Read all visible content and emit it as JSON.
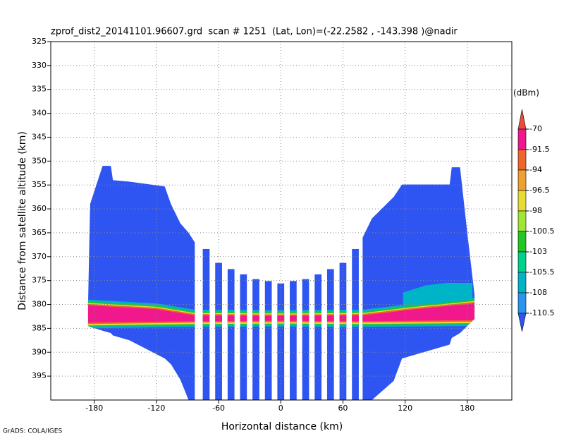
{
  "chart_data": {
    "type": "profile",
    "title": "zprof_dist2_20141101.96607.grd  scan # 1251  (Lat, Lon)=(-22.2582 , -143.398 )@nadir",
    "xlabel": "Horizontal distance (km)",
    "ylabel": "Distance from satellite altitude (km)",
    "credit": "GrADS: COLA/IGES",
    "xlim": [
      -222,
      223
    ],
    "ylim": [
      325,
      400
    ],
    "xticks": [
      -180,
      -120,
      -60,
      0,
      60,
      120,
      180
    ],
    "yticks": [
      325,
      330,
      335,
      340,
      345,
      350,
      355,
      360,
      365,
      370,
      375,
      380,
      385,
      390,
      395
    ],
    "grid": true,
    "colorbar": {
      "unit": "(dBm)",
      "levels": [
        -70,
        -91.5,
        -94,
        -96.5,
        -98,
        -100.5,
        -103,
        -105.5,
        -108,
        -110.5
      ],
      "colors": [
        "#ec4a3c",
        "#f0188c",
        "#f0642d",
        "#f0a030",
        "#e6dc32",
        "#a0e632",
        "#22c822",
        "#00d28c",
        "#00b4c8",
        "#2896f0",
        "#2e55f2"
      ]
    },
    "swaths": [
      {
        "value": -112,
        "x": [
          -186,
          -184,
          -172,
          -164,
          -162,
          -146,
          -112,
          -106,
          -97,
          -89,
          -83
        ],
        "top": [
          380,
          359,
          351,
          351,
          354,
          354.3,
          355.3,
          359,
          363,
          365,
          367
        ],
        "bottom": [
          384.5,
          384.7,
          385.5,
          386,
          386.5,
          387.5,
          391.3,
          392.5,
          395.7,
          400,
          400
        ]
      },
      {
        "value": -112,
        "x": [
          79,
          88,
          109,
          117,
          163,
          165,
          173,
          180,
          187
        ],
        "top": [
          366,
          362,
          357.5,
          354.9,
          354.9,
          351.3,
          351.3,
          365,
          378
        ],
        "bottom": [
          400,
          400,
          396,
          391.3,
          388.4,
          387,
          386,
          384.5,
          383
        ]
      }
    ],
    "stripes": {
      "value": -112,
      "x0": [
        -75.3,
        -63.3,
        -51.3,
        -39.3,
        -27.3,
        -15.3,
        -3.3,
        8.7,
        20.7,
        32.7,
        44.7,
        56.7,
        68.7
      ],
      "x1": [
        -68.7,
        -56.7,
        -44.7,
        -32.7,
        -20.7,
        -8.7,
        3.3,
        15.3,
        27.3,
        39.3,
        51.3,
        63.3,
        75.3
      ],
      "top": [
        368.4,
        371.3,
        372.6,
        373.7,
        374.7,
        375.1,
        375.6,
        375.1,
        374.7,
        373.7,
        372.6,
        371.3,
        368.4
      ],
      "bottom": [
        400,
        400,
        400,
        400,
        400,
        400,
        400,
        400,
        400,
        400,
        400,
        400,
        400
      ]
    },
    "layers": [
      {
        "value": -108,
        "x": [
          118,
          140,
          160,
          185
        ],
        "top": [
          377.5,
          376,
          375.5,
          375.5
        ],
        "bottom": [
          380.5,
          380.2,
          379.8,
          379.5
        ]
      },
      {
        "value": -106,
        "x": [
          125,
          145,
          165,
          184
        ],
        "top": [
          378.2,
          377,
          376.8,
          377
        ],
        "bottom": [
          380.2,
          379.9,
          379.6,
          379.4
        ]
      },
      {
        "value": -108,
        "x": [
          -186,
          -120,
          -83,
          0,
          79,
          130,
          187
        ],
        "top": [
          379,
          379.8,
          381.1,
          381.2,
          381.1,
          379.8,
          378.6
        ],
        "bottom": [
          385,
          384.8,
          384.7,
          384.6,
          384.7,
          384.6,
          384.5
        ]
      },
      {
        "value": -101,
        "x": [
          -186,
          -120,
          -83,
          0,
          79,
          130,
          187
        ],
        "top": [
          379.4,
          380.2,
          381.5,
          381.6,
          381.5,
          380.2,
          379
        ],
        "bottom": [
          384.6,
          384.4,
          384.3,
          384.2,
          384.3,
          384.2,
          384.1
        ]
      },
      {
        "value": -97,
        "x": [
          -186,
          -120,
          -83,
          0,
          79,
          130,
          187
        ],
        "top": [
          379.7,
          380.5,
          381.8,
          381.9,
          381.8,
          380.5,
          379.3
        ],
        "bottom": [
          384.4,
          384.2,
          384.1,
          384,
          384.1,
          384,
          383.9
        ]
      },
      {
        "value": -93,
        "x": [
          -186,
          -120,
          -83,
          0,
          79,
          130,
          187
        ],
        "top": [
          379.9,
          380.7,
          382,
          382.1,
          382,
          380.7,
          379.5
        ],
        "bottom": [
          384.1,
          383.9,
          383.8,
          383.7,
          383.8,
          383.7,
          383.6
        ]
      },
      {
        "value": -80,
        "x": [
          -186,
          -120,
          -83,
          0,
          79,
          130,
          187
        ],
        "top": [
          380.2,
          381,
          382.3,
          382.4,
          382.3,
          381,
          379.8
        ],
        "bottom": [
          383.8,
          383.6,
          383.5,
          383.4,
          383.5,
          383.4,
          383.3
        ]
      }
    ]
  }
}
